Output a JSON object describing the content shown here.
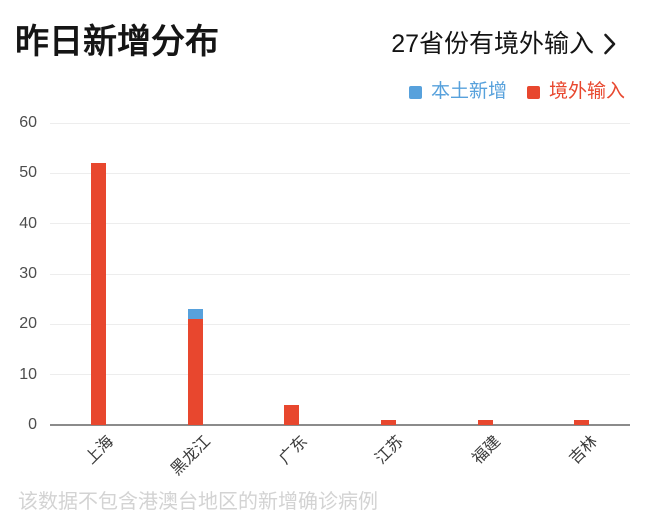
{
  "header": {
    "title": "昨日新增分布",
    "link_label": "27省份有境外输入"
  },
  "legend": [
    {
      "label": "本土新增",
      "color": "#57a1dc"
    },
    {
      "label": "境外输入",
      "color": "#e8472e"
    }
  ],
  "chart_data": {
    "type": "bar",
    "stacked": true,
    "title": "昨日新增分布",
    "categories": [
      "上海",
      "黑龙江",
      "广东",
      "江苏",
      "福建",
      "吉林"
    ],
    "series": [
      {
        "name": "境外输入",
        "color": "#e8472e",
        "stack_position": "bottom",
        "values": [
          52,
          21,
          4,
          1,
          1,
          1
        ]
      },
      {
        "name": "本土新增",
        "color": "#57a1dc",
        "stack_position": "top",
        "values": [
          0,
          2,
          0,
          0,
          0,
          0
        ]
      }
    ],
    "totals": [
      52,
      23,
      4,
      1,
      1,
      1
    ],
    "ylim": [
      0,
      60
    ],
    "yticks": [
      0,
      10,
      20,
      30,
      40,
      50,
      60
    ],
    "grid": true,
    "legend_position": "top-right",
    "xlabel_rotation_deg": -45
  },
  "footer": {
    "note": "该数据不包含港澳台地区的新增确诊病例"
  },
  "colors": {
    "gridline": "#ededed",
    "axis_line": "#8b8b8b",
    "ytick_text": "#4d4d4d",
    "xlabel_text": "#3a3a3a",
    "title_text": "#151515",
    "footnote_text": "#d3d3d3"
  }
}
